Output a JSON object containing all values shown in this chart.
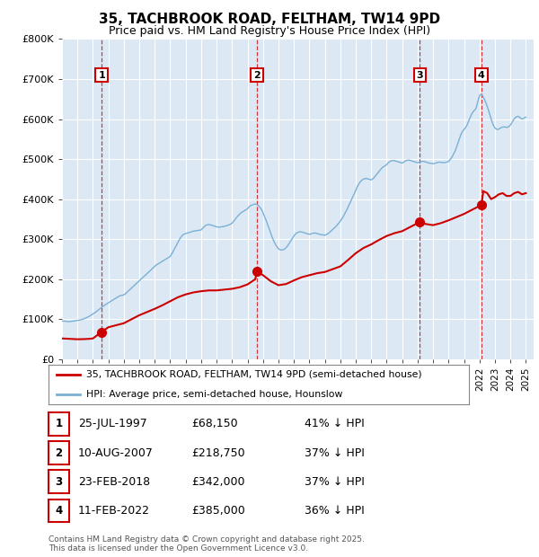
{
  "title": "35, TACHBROOK ROAD, FELTHAM, TW14 9PD",
  "subtitle": "Price paid vs. HM Land Registry's House Price Index (HPI)",
  "legend_label_red": "35, TACHBROOK ROAD, FELTHAM, TW14 9PD (semi-detached house)",
  "legend_label_blue": "HPI: Average price, semi-detached house, Hounslow",
  "footer": "Contains HM Land Registry data © Crown copyright and database right 2025.\nThis data is licensed under the Open Government Licence v3.0.",
  "ylim": [
    0,
    800000
  ],
  "yticks": [
    0,
    100000,
    200000,
    300000,
    400000,
    500000,
    600000,
    700000,
    800000
  ],
  "ytick_labels": [
    "£0",
    "£100K",
    "£200K",
    "£300K",
    "£400K",
    "£500K",
    "£600K",
    "£700K",
    "£800K"
  ],
  "xlim_start": 1995.0,
  "xlim_end": 2025.5,
  "background_color": "#dce9f5",
  "red_color": "#cc0000",
  "blue_color": "#7ab0d4",
  "transactions": [
    {
      "num": 1,
      "date": "25-JUL-1997",
      "date_val": 1997.56,
      "price": 68150,
      "pct": "41%"
    },
    {
      "num": 2,
      "date": "10-AUG-2007",
      "date_val": 2007.61,
      "price": 218750,
      "pct": "37%"
    },
    {
      "num": 3,
      "date": "23-FEB-2018",
      "date_val": 2018.14,
      "price": 342000,
      "pct": "37%"
    },
    {
      "num": 4,
      "date": "11-FEB-2022",
      "date_val": 2022.12,
      "price": 385000,
      "pct": "36%"
    }
  ],
  "hpi_data": [
    [
      1995.0,
      95000
    ],
    [
      1995.08,
      95500
    ],
    [
      1995.17,
      95200
    ],
    [
      1995.25,
      94800
    ],
    [
      1995.33,
      94500
    ],
    [
      1995.42,
      94000
    ],
    [
      1995.5,
      94200
    ],
    [
      1995.58,
      94500
    ],
    [
      1995.67,
      95000
    ],
    [
      1995.75,
      95500
    ],
    [
      1995.83,
      96000
    ],
    [
      1995.92,
      96500
    ],
    [
      1996.0,
      97000
    ],
    [
      1996.08,
      97500
    ],
    [
      1996.17,
      98200
    ],
    [
      1996.25,
      99000
    ],
    [
      1996.33,
      100000
    ],
    [
      1996.42,
      101000
    ],
    [
      1996.5,
      102500
    ],
    [
      1996.58,
      104000
    ],
    [
      1996.67,
      105500
    ],
    [
      1996.75,
      107000
    ],
    [
      1996.83,
      109000
    ],
    [
      1996.92,
      111000
    ],
    [
      1997.0,
      113000
    ],
    [
      1997.08,
      115000
    ],
    [
      1997.17,
      117500
    ],
    [
      1997.25,
      120000
    ],
    [
      1997.33,
      122500
    ],
    [
      1997.42,
      125000
    ],
    [
      1997.5,
      127500
    ],
    [
      1997.58,
      130000
    ],
    [
      1997.67,
      132500
    ],
    [
      1997.75,
      135000
    ],
    [
      1997.83,
      137000
    ],
    [
      1997.92,
      139000
    ],
    [
      1998.0,
      141000
    ],
    [
      1998.08,
      143000
    ],
    [
      1998.17,
      145000
    ],
    [
      1998.25,
      147000
    ],
    [
      1998.33,
      149000
    ],
    [
      1998.42,
      151000
    ],
    [
      1998.5,
      153000
    ],
    [
      1998.58,
      155000
    ],
    [
      1998.67,
      157000
    ],
    [
      1998.75,
      158500
    ],
    [
      1998.83,
      159500
    ],
    [
      1998.92,
      160000
    ],
    [
      1999.0,
      161000
    ],
    [
      1999.08,
      163000
    ],
    [
      1999.17,
      166000
    ],
    [
      1999.25,
      169000
    ],
    [
      1999.33,
      172000
    ],
    [
      1999.42,
      175000
    ],
    [
      1999.5,
      178000
    ],
    [
      1999.58,
      181000
    ],
    [
      1999.67,
      184000
    ],
    [
      1999.75,
      187000
    ],
    [
      1999.83,
      190000
    ],
    [
      1999.92,
      193000
    ],
    [
      2000.0,
      196000
    ],
    [
      2000.08,
      199000
    ],
    [
      2000.17,
      202000
    ],
    [
      2000.25,
      205000
    ],
    [
      2000.33,
      208000
    ],
    [
      2000.42,
      211000
    ],
    [
      2000.5,
      214000
    ],
    [
      2000.58,
      217000
    ],
    [
      2000.67,
      220000
    ],
    [
      2000.75,
      223000
    ],
    [
      2000.83,
      226000
    ],
    [
      2000.92,
      229000
    ],
    [
      2001.0,
      232000
    ],
    [
      2001.08,
      235000
    ],
    [
      2001.17,
      237000
    ],
    [
      2001.25,
      239000
    ],
    [
      2001.33,
      241000
    ],
    [
      2001.42,
      243000
    ],
    [
      2001.5,
      245000
    ],
    [
      2001.58,
      247000
    ],
    [
      2001.67,
      249000
    ],
    [
      2001.75,
      251000
    ],
    [
      2001.83,
      253000
    ],
    [
      2001.92,
      255000
    ],
    [
      2002.0,
      257000
    ],
    [
      2002.08,
      262000
    ],
    [
      2002.17,
      268000
    ],
    [
      2002.25,
      274000
    ],
    [
      2002.33,
      280000
    ],
    [
      2002.42,
      286000
    ],
    [
      2002.5,
      292000
    ],
    [
      2002.58,
      298000
    ],
    [
      2002.67,
      304000
    ],
    [
      2002.75,
      308000
    ],
    [
      2002.83,
      311000
    ],
    [
      2002.92,
      313000
    ],
    [
      2003.0,
      314000
    ],
    [
      2003.08,
      315000
    ],
    [
      2003.17,
      316000
    ],
    [
      2003.25,
      317000
    ],
    [
      2003.33,
      318000
    ],
    [
      2003.42,
      319000
    ],
    [
      2003.5,
      320000
    ],
    [
      2003.58,
      320500
    ],
    [
      2003.67,
      321000
    ],
    [
      2003.75,
      321500
    ],
    [
      2003.83,
      322000
    ],
    [
      2003.92,
      322500
    ],
    [
      2004.0,
      323000
    ],
    [
      2004.08,
      327000
    ],
    [
      2004.17,
      330000
    ],
    [
      2004.25,
      333000
    ],
    [
      2004.33,
      335000
    ],
    [
      2004.42,
      336000
    ],
    [
      2004.5,
      336500
    ],
    [
      2004.58,
      336000
    ],
    [
      2004.67,
      335000
    ],
    [
      2004.75,
      334000
    ],
    [
      2004.83,
      333000
    ],
    [
      2004.92,
      332000
    ],
    [
      2005.0,
      331000
    ],
    [
      2005.08,
      330000
    ],
    [
      2005.17,
      330000
    ],
    [
      2005.25,
      330500
    ],
    [
      2005.33,
      331000
    ],
    [
      2005.42,
      331500
    ],
    [
      2005.5,
      332000
    ],
    [
      2005.58,
      333000
    ],
    [
      2005.67,
      334000
    ],
    [
      2005.75,
      335000
    ],
    [
      2005.83,
      336500
    ],
    [
      2005.92,
      338000
    ],
    [
      2006.0,
      340000
    ],
    [
      2006.08,
      344000
    ],
    [
      2006.17,
      348000
    ],
    [
      2006.25,
      352000
    ],
    [
      2006.33,
      356000
    ],
    [
      2006.42,
      360000
    ],
    [
      2006.5,
      363000
    ],
    [
      2006.58,
      366000
    ],
    [
      2006.67,
      368000
    ],
    [
      2006.75,
      370000
    ],
    [
      2006.83,
      372000
    ],
    [
      2006.92,
      374000
    ],
    [
      2007.0,
      376000
    ],
    [
      2007.08,
      380000
    ],
    [
      2007.17,
      383000
    ],
    [
      2007.25,
      385000
    ],
    [
      2007.33,
      386000
    ],
    [
      2007.42,
      387000
    ],
    [
      2007.5,
      388000
    ],
    [
      2007.58,
      387000
    ],
    [
      2007.67,
      385000
    ],
    [
      2007.75,
      382000
    ],
    [
      2007.83,
      378000
    ],
    [
      2007.92,
      373000
    ],
    [
      2008.0,
      366000
    ],
    [
      2008.08,
      358000
    ],
    [
      2008.17,
      350000
    ],
    [
      2008.25,
      342000
    ],
    [
      2008.33,
      333000
    ],
    [
      2008.42,
      324000
    ],
    [
      2008.5,
      315000
    ],
    [
      2008.58,
      306000
    ],
    [
      2008.67,
      298000
    ],
    [
      2008.75,
      291000
    ],
    [
      2008.83,
      285000
    ],
    [
      2008.92,
      280000
    ],
    [
      2009.0,
      276000
    ],
    [
      2009.08,
      274000
    ],
    [
      2009.17,
      273000
    ],
    [
      2009.25,
      273000
    ],
    [
      2009.33,
      274000
    ],
    [
      2009.42,
      276000
    ],
    [
      2009.5,
      279000
    ],
    [
      2009.58,
      283000
    ],
    [
      2009.67,
      288000
    ],
    [
      2009.75,
      293000
    ],
    [
      2009.83,
      298000
    ],
    [
      2009.92,
      303000
    ],
    [
      2010.0,
      308000
    ],
    [
      2010.08,
      312000
    ],
    [
      2010.17,
      315000
    ],
    [
      2010.25,
      317000
    ],
    [
      2010.33,
      318000
    ],
    [
      2010.42,
      318500
    ],
    [
      2010.5,
      318000
    ],
    [
      2010.58,
      317000
    ],
    [
      2010.67,
      316000
    ],
    [
      2010.75,
      315000
    ],
    [
      2010.83,
      314000
    ],
    [
      2010.92,
      313000
    ],
    [
      2011.0,
      312000
    ],
    [
      2011.08,
      313000
    ],
    [
      2011.17,
      314000
    ],
    [
      2011.25,
      315000
    ],
    [
      2011.33,
      315500
    ],
    [
      2011.42,
      315000
    ],
    [
      2011.5,
      314000
    ],
    [
      2011.58,
      313000
    ],
    [
      2011.67,
      312000
    ],
    [
      2011.75,
      311500
    ],
    [
      2011.83,
      311000
    ],
    [
      2011.92,
      310500
    ],
    [
      2012.0,
      310000
    ],
    [
      2012.08,
      311000
    ],
    [
      2012.17,
      313000
    ],
    [
      2012.25,
      315000
    ],
    [
      2012.33,
      318000
    ],
    [
      2012.42,
      321000
    ],
    [
      2012.5,
      324000
    ],
    [
      2012.58,
      327000
    ],
    [
      2012.67,
      330000
    ],
    [
      2012.75,
      333000
    ],
    [
      2012.83,
      337000
    ],
    [
      2012.92,
      341000
    ],
    [
      2013.0,
      345000
    ],
    [
      2013.08,
      350000
    ],
    [
      2013.17,
      355000
    ],
    [
      2013.25,
      361000
    ],
    [
      2013.33,
      367000
    ],
    [
      2013.42,
      373000
    ],
    [
      2013.5,
      380000
    ],
    [
      2013.58,
      387000
    ],
    [
      2013.67,
      394000
    ],
    [
      2013.75,
      401000
    ],
    [
      2013.83,
      408000
    ],
    [
      2013.92,
      415000
    ],
    [
      2014.0,
      422000
    ],
    [
      2014.08,
      430000
    ],
    [
      2014.17,
      436000
    ],
    [
      2014.25,
      441000
    ],
    [
      2014.33,
      445000
    ],
    [
      2014.42,
      448000
    ],
    [
      2014.5,
      450000
    ],
    [
      2014.58,
      451000
    ],
    [
      2014.67,
      451500
    ],
    [
      2014.75,
      451000
    ],
    [
      2014.83,
      450000
    ],
    [
      2014.92,
      449000
    ],
    [
      2015.0,
      448000
    ],
    [
      2015.08,
      450000
    ],
    [
      2015.17,
      453000
    ],
    [
      2015.25,
      457000
    ],
    [
      2015.33,
      461000
    ],
    [
      2015.42,
      465000
    ],
    [
      2015.5,
      469000
    ],
    [
      2015.58,
      473000
    ],
    [
      2015.67,
      477000
    ],
    [
      2015.75,
      480000
    ],
    [
      2015.83,
      482000
    ],
    [
      2015.92,
      484000
    ],
    [
      2016.0,
      486000
    ],
    [
      2016.08,
      490000
    ],
    [
      2016.17,
      493000
    ],
    [
      2016.25,
      495000
    ],
    [
      2016.33,
      496000
    ],
    [
      2016.42,
      496500
    ],
    [
      2016.5,
      496000
    ],
    [
      2016.58,
      495000
    ],
    [
      2016.67,
      494000
    ],
    [
      2016.75,
      493000
    ],
    [
      2016.83,
      492000
    ],
    [
      2016.92,
      491000
    ],
    [
      2017.0,
      490000
    ],
    [
      2017.08,
      492000
    ],
    [
      2017.17,
      494000
    ],
    [
      2017.25,
      496000
    ],
    [
      2017.33,
      497000
    ],
    [
      2017.42,
      497500
    ],
    [
      2017.5,
      497000
    ],
    [
      2017.58,
      496000
    ],
    [
      2017.67,
      495000
    ],
    [
      2017.75,
      494000
    ],
    [
      2017.83,
      493000
    ],
    [
      2017.92,
      492000
    ],
    [
      2018.0,
      491000
    ],
    [
      2018.08,
      492000
    ],
    [
      2018.17,
      493000
    ],
    [
      2018.25,
      494000
    ],
    [
      2018.33,
      494500
    ],
    [
      2018.42,
      494000
    ],
    [
      2018.5,
      493000
    ],
    [
      2018.58,
      492000
    ],
    [
      2018.67,
      491000
    ],
    [
      2018.75,
      490000
    ],
    [
      2018.83,
      489500
    ],
    [
      2018.92,
      489000
    ],
    [
      2019.0,
      488500
    ],
    [
      2019.08,
      489000
    ],
    [
      2019.17,
      490000
    ],
    [
      2019.25,
      491000
    ],
    [
      2019.33,
      492000
    ],
    [
      2019.42,
      492500
    ],
    [
      2019.5,
      492000
    ],
    [
      2019.58,
      491500
    ],
    [
      2019.67,
      491000
    ],
    [
      2019.75,
      491500
    ],
    [
      2019.83,
      492000
    ],
    [
      2019.92,
      493000
    ],
    [
      2020.0,
      494000
    ],
    [
      2020.08,
      498000
    ],
    [
      2020.17,
      502000
    ],
    [
      2020.25,
      507000
    ],
    [
      2020.33,
      513000
    ],
    [
      2020.42,
      520000
    ],
    [
      2020.5,
      528000
    ],
    [
      2020.58,
      537000
    ],
    [
      2020.67,
      547000
    ],
    [
      2020.75,
      556000
    ],
    [
      2020.83,
      564000
    ],
    [
      2020.92,
      570000
    ],
    [
      2021.0,
      574000
    ],
    [
      2021.08,
      578000
    ],
    [
      2021.17,
      583000
    ],
    [
      2021.25,
      590000
    ],
    [
      2021.33,
      598000
    ],
    [
      2021.42,
      606000
    ],
    [
      2021.5,
      613000
    ],
    [
      2021.58,
      618000
    ],
    [
      2021.67,
      622000
    ],
    [
      2021.75,
      625000
    ],
    [
      2021.83,
      634000
    ],
    [
      2021.92,
      648000
    ],
    [
      2022.0,
      658000
    ],
    [
      2022.08,
      662000
    ],
    [
      2022.17,
      660000
    ],
    [
      2022.25,
      655000
    ],
    [
      2022.33,
      648000
    ],
    [
      2022.42,
      640000
    ],
    [
      2022.5,
      632000
    ],
    [
      2022.58,
      622000
    ],
    [
      2022.67,
      611000
    ],
    [
      2022.75,
      600000
    ],
    [
      2022.83,
      591000
    ],
    [
      2022.92,
      583000
    ],
    [
      2023.0,
      578000
    ],
    [
      2023.08,
      575000
    ],
    [
      2023.17,
      574000
    ],
    [
      2023.25,
      575000
    ],
    [
      2023.33,
      577000
    ],
    [
      2023.42,
      579000
    ],
    [
      2023.5,
      580000
    ],
    [
      2023.58,
      580500
    ],
    [
      2023.67,
      580000
    ],
    [
      2023.75,
      579000
    ],
    [
      2023.83,
      580000
    ],
    [
      2023.92,
      582000
    ],
    [
      2024.0,
      585000
    ],
    [
      2024.08,
      590000
    ],
    [
      2024.17,
      596000
    ],
    [
      2024.25,
      601000
    ],
    [
      2024.33,
      604000
    ],
    [
      2024.42,
      606000
    ],
    [
      2024.5,
      607000
    ],
    [
      2024.58,
      605000
    ],
    [
      2024.67,
      602000
    ],
    [
      2024.75,
      600000
    ],
    [
      2024.83,
      601000
    ],
    [
      2024.92,
      603000
    ],
    [
      2025.0,
      605000
    ]
  ],
  "price_data": [
    [
      1995.0,
      52000
    ],
    [
      1995.25,
      51500
    ],
    [
      1995.5,
      51000
    ],
    [
      1995.75,
      50500
    ],
    [
      1996.0,
      50000
    ],
    [
      1996.25,
      50200
    ],
    [
      1996.5,
      50500
    ],
    [
      1996.75,
      51000
    ],
    [
      1997.0,
      52000
    ],
    [
      1997.56,
      68150
    ],
    [
      1998.0,
      80000
    ],
    [
      1998.5,
      85000
    ],
    [
      1999.0,
      90000
    ],
    [
      1999.5,
      100000
    ],
    [
      2000.0,
      110000
    ],
    [
      2000.5,
      118000
    ],
    [
      2001.0,
      126000
    ],
    [
      2001.5,
      135000
    ],
    [
      2002.0,
      145000
    ],
    [
      2002.5,
      155000
    ],
    [
      2003.0,
      162000
    ],
    [
      2003.5,
      167000
    ],
    [
      2004.0,
      170000
    ],
    [
      2004.5,
      172000
    ],
    [
      2005.0,
      172000
    ],
    [
      2005.5,
      174000
    ],
    [
      2006.0,
      176000
    ],
    [
      2006.5,
      180000
    ],
    [
      2007.0,
      187000
    ],
    [
      2007.5,
      200000
    ],
    [
      2007.61,
      218750
    ],
    [
      2008.0,
      210000
    ],
    [
      2008.5,
      195000
    ],
    [
      2009.0,
      185000
    ],
    [
      2009.5,
      188000
    ],
    [
      2010.0,
      197000
    ],
    [
      2010.5,
      205000
    ],
    [
      2011.0,
      210000
    ],
    [
      2011.5,
      215000
    ],
    [
      2012.0,
      218000
    ],
    [
      2012.5,
      225000
    ],
    [
      2013.0,
      232000
    ],
    [
      2013.5,
      248000
    ],
    [
      2014.0,
      265000
    ],
    [
      2014.5,
      278000
    ],
    [
      2015.0,
      287000
    ],
    [
      2015.5,
      298000
    ],
    [
      2016.0,
      308000
    ],
    [
      2016.5,
      315000
    ],
    [
      2017.0,
      320000
    ],
    [
      2017.5,
      330000
    ],
    [
      2018.0,
      340000
    ],
    [
      2018.14,
      342000
    ],
    [
      2018.5,
      338000
    ],
    [
      2019.0,
      335000
    ],
    [
      2019.5,
      340000
    ],
    [
      2020.0,
      347000
    ],
    [
      2020.5,
      355000
    ],
    [
      2021.0,
      363000
    ],
    [
      2021.5,
      373000
    ],
    [
      2022.0,
      383000
    ],
    [
      2022.12,
      385000
    ],
    [
      2022.25,
      420000
    ],
    [
      2022.5,
      415000
    ],
    [
      2022.75,
      400000
    ],
    [
      2023.0,
      405000
    ],
    [
      2023.25,
      412000
    ],
    [
      2023.5,
      415000
    ],
    [
      2023.75,
      408000
    ],
    [
      2024.0,
      408000
    ],
    [
      2024.25,
      415000
    ],
    [
      2024.5,
      418000
    ],
    [
      2024.75,
      412000
    ],
    [
      2025.0,
      415000
    ]
  ],
  "xtick_years": [
    1995,
    1996,
    1997,
    1998,
    1999,
    2000,
    2001,
    2002,
    2003,
    2004,
    2005,
    2006,
    2007,
    2008,
    2009,
    2010,
    2011,
    2012,
    2013,
    2014,
    2015,
    2016,
    2017,
    2018,
    2019,
    2020,
    2021,
    2022,
    2023,
    2024,
    2025
  ]
}
